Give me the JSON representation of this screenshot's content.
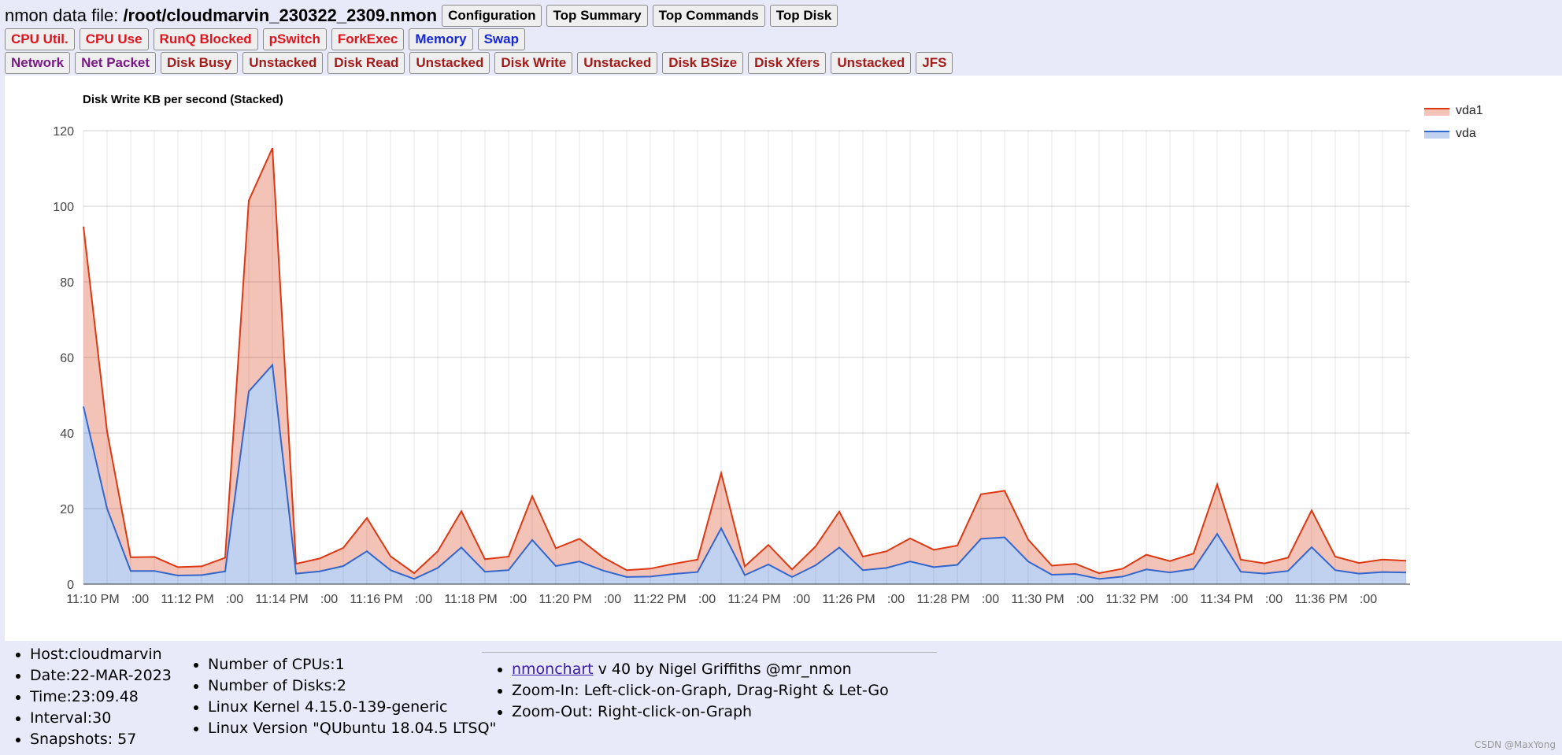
{
  "header": {
    "file_label": "nmon data file:",
    "file_name": "/root/cloudmarvin_230322_2309.nmon",
    "buttons": [
      "Configuration",
      "Top Summary",
      "Top Commands",
      "Top Disk"
    ]
  },
  "row2": [
    {
      "label": "CPU Util.",
      "color": "red"
    },
    {
      "label": "CPU Use",
      "color": "red"
    },
    {
      "label": "RunQ Blocked",
      "color": "red"
    },
    {
      "label": "pSwitch",
      "color": "red"
    },
    {
      "label": "ForkExec",
      "color": "red"
    },
    {
      "label": "Memory",
      "color": "blue"
    },
    {
      "label": "Swap",
      "color": "blue"
    }
  ],
  "row3": [
    {
      "label": "Network",
      "color": "purple"
    },
    {
      "label": "Net Packet",
      "color": "purple"
    },
    {
      "label": "Disk Busy",
      "color": "brown"
    },
    {
      "label": "Unstacked",
      "color": "brown"
    },
    {
      "label": "Disk Read",
      "color": "brown"
    },
    {
      "label": "Unstacked",
      "color": "brown"
    },
    {
      "label": "Disk Write",
      "color": "brown"
    },
    {
      "label": "Unstacked",
      "color": "brown"
    },
    {
      "label": "Disk BSize",
      "color": "brown"
    },
    {
      "label": "Disk Xfers",
      "color": "brown"
    },
    {
      "label": "Unstacked",
      "color": "brown"
    },
    {
      "label": "JFS",
      "color": "brown"
    }
  ],
  "chart_data": {
    "type": "area",
    "stacked": true,
    "title": "Disk Write KB per second (Stacked)",
    "ylim": [
      0,
      120
    ],
    "yticks": [
      0,
      20,
      40,
      60,
      80,
      100,
      120
    ],
    "xtick_labels": [
      "11:10 PM",
      ":00",
      "11:12 PM",
      ":00",
      "11:14 PM",
      ":00",
      "11:16 PM",
      ":00",
      "11:18 PM",
      ":00",
      "11:20 PM",
      ":00",
      "11:22 PM",
      ":00",
      "11:24 PM",
      ":00",
      "11:26 PM",
      ":00",
      "11:28 PM",
      ":00",
      "11:30 PM",
      ":00",
      "11:32 PM",
      ":00",
      "11:34 PM",
      ":00",
      "11:36 PM",
      ":00"
    ],
    "x_start": "11:09:48 PM",
    "interval_seconds": 30,
    "grid": true,
    "legend_position": "top-right",
    "colors": {
      "vda1": "#dc3912",
      "vda": "#3366cc"
    },
    "series": [
      {
        "name": "vda",
        "values": [
          47,
          20,
          3.5,
          3.5,
          2.3,
          2.4,
          3.4,
          51,
          58,
          2.8,
          3.4,
          4.8,
          8.7,
          3.7,
          1.4,
          4.3,
          9.7,
          3.3,
          3.7,
          11.7,
          4.8,
          6,
          3.6,
          1.9,
          2,
          2.7,
          3.2,
          14.8,
          2.4,
          5.2,
          1.9,
          5,
          9.7,
          3.7,
          4.3,
          6,
          4.5,
          5.1,
          12,
          12.4,
          6,
          2.5,
          2.7,
          1.4,
          2,
          3.9,
          3.1,
          4,
          13.3,
          3.3,
          2.8,
          3.5,
          9.8,
          3.7,
          2.8,
          3.2,
          3.1
        ]
      },
      {
        "name": "vda1",
        "values": [
          47.6,
          20.4,
          3.6,
          3.7,
          2.2,
          2.3,
          3.6,
          50.5,
          57.4,
          2.6,
          3.4,
          4.8,
          8.8,
          3.7,
          1.5,
          4.4,
          9.6,
          3.3,
          3.6,
          11.6,
          4.7,
          6,
          3.5,
          1.8,
          2.1,
          2.7,
          3.3,
          14.6,
          2.3,
          5.2,
          2,
          5,
          9.5,
          3.6,
          4.4,
          6.1,
          4.6,
          5.1,
          11.8,
          12.3,
          5.8,
          2.4,
          2.7,
          1.5,
          2.1,
          3.9,
          3,
          4.1,
          13.1,
          3.2,
          2.7,
          3.5,
          9.7,
          3.6,
          2.8,
          3.3,
          3.1
        ]
      }
    ]
  },
  "footer": {
    "host_info": [
      "Host:cloudmarvin",
      "Date:22-MAR-2023",
      "Time:23:09.48",
      "Interval:30",
      "Snapshots: 57"
    ],
    "system_info": [
      "Number of CPUs:1",
      "Number of Disks:2",
      "Linux Kernel 4.15.0-139-generic",
      "Linux Version \"QUbuntu 18.04.5 LTSQ\""
    ],
    "app_link": "nmonchart",
    "app_info": " v 40 by Nigel Griffiths @mr_nmon",
    "zoom_in": "Zoom-In: Left-click-on-Graph, Drag-Right & Let-Go",
    "zoom_out": "Zoom-Out: Right-click-on-Graph"
  },
  "credit": "CSDN @MaxYong"
}
